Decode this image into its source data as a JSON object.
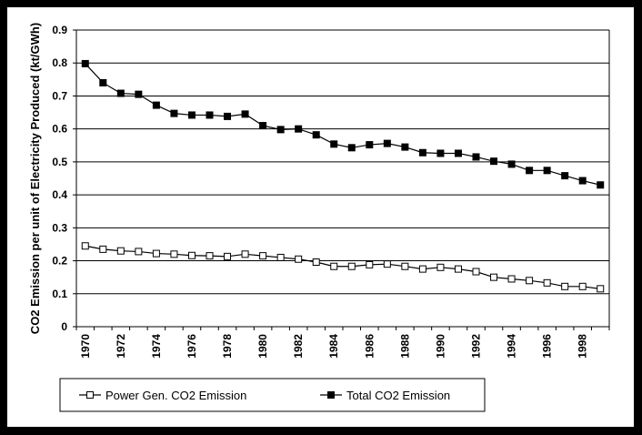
{
  "chart_data": {
    "type": "line",
    "title": "",
    "xlabel": "",
    "ylabel": "CO2 Emission per unit of Electricity Produced (kt/GWh)",
    "ylim": [
      0,
      0.9
    ],
    "y_ticks": [
      "0",
      "0.1",
      "0.2",
      "0.3",
      "0.4",
      "0.5",
      "0.6",
      "0.7",
      "0.8",
      "0.9"
    ],
    "x_ticks": [
      "1970",
      "1972",
      "1974",
      "1976",
      "1978",
      "1980",
      "1982",
      "1984",
      "1986",
      "1988",
      "1990",
      "1992",
      "1994",
      "1996",
      "1998"
    ],
    "grid": "horizontal",
    "legend_position": "bottom",
    "x": [
      1970,
      1971,
      1972,
      1973,
      1974,
      1975,
      1976,
      1977,
      1978,
      1979,
      1980,
      1981,
      1982,
      1983,
      1984,
      1985,
      1986,
      1987,
      1988,
      1989,
      1990,
      1991,
      1992,
      1993,
      1994,
      1995,
      1996,
      1997,
      1998,
      1999
    ],
    "series": [
      {
        "name": "Power Gen. CO2 Emission",
        "marker": "open-square",
        "color": "#000000",
        "values": [
          0.245,
          0.235,
          0.23,
          0.228,
          0.222,
          0.22,
          0.216,
          0.215,
          0.213,
          0.22,
          0.215,
          0.21,
          0.205,
          0.196,
          0.183,
          0.183,
          0.188,
          0.19,
          0.183,
          0.175,
          0.18,
          0.175,
          0.167,
          0.15,
          0.145,
          0.14,
          0.133,
          0.122,
          0.122,
          0.115
        ]
      },
      {
        "name": "Total CO2 Emission",
        "marker": "filled-square",
        "color": "#000000",
        "values": [
          0.798,
          0.74,
          0.708,
          0.705,
          0.672,
          0.647,
          0.642,
          0.642,
          0.638,
          0.645,
          0.61,
          0.598,
          0.6,
          0.582,
          0.554,
          0.543,
          0.552,
          0.556,
          0.545,
          0.528,
          0.526,
          0.526,
          0.515,
          0.502,
          0.493,
          0.474,
          0.474,
          0.458,
          0.443,
          0.43
        ]
      }
    ]
  }
}
